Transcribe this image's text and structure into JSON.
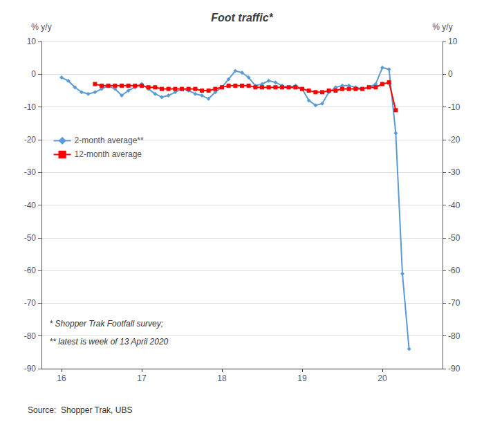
{
  "chart_data": {
    "type": "line",
    "title": "Foot traffic*",
    "ylabel": "% y/y",
    "y2label": "% y/y",
    "annotations": [
      "* Shopper Trak Footfall survey;",
      "** latest is week of 13 April 2020"
    ],
    "source": "Source:  Shopper Trak, UBS",
    "xlim": [
      15.75,
      20.75
    ],
    "xticks": [
      16,
      17,
      18,
      19,
      20
    ],
    "ylim": [
      -90,
      10
    ],
    "yticks": [
      10,
      0,
      -10,
      -20,
      -30,
      -40,
      -50,
      -60,
      -70,
      -80,
      -90
    ],
    "y2lim": [
      -90,
      10
    ],
    "y2ticks": [
      10,
      0,
      -10,
      -20,
      -30,
      -40,
      -50,
      -60,
      -70,
      -80,
      -90
    ],
    "grid": true,
    "legend": "upper left",
    "series": [
      {
        "name": "2-month average**",
        "color": "#5B9BD5",
        "marker": "diamond",
        "x": [
          16.0,
          16.083,
          16.167,
          16.25,
          16.333,
          16.417,
          16.5,
          16.583,
          16.667,
          16.75,
          16.833,
          16.917,
          17.0,
          17.083,
          17.167,
          17.25,
          17.333,
          17.417,
          17.5,
          17.583,
          17.667,
          17.75,
          17.833,
          17.917,
          18.0,
          18.083,
          18.167,
          18.25,
          18.333,
          18.417,
          18.5,
          18.583,
          18.667,
          18.75,
          18.833,
          18.917,
          19.0,
          19.083,
          19.167,
          19.25,
          19.333,
          19.417,
          19.5,
          19.583,
          19.667,
          19.75,
          19.833,
          19.917,
          20.0,
          20.083,
          20.167,
          20.25,
          20.333
        ],
        "values": [
          -1.0,
          -2.0,
          -4.0,
          -5.5,
          -6.0,
          -5.5,
          -4.5,
          -3.5,
          -4.5,
          -6.5,
          -5.0,
          -4.0,
          -3.0,
          -4.5,
          -6.0,
          -7.0,
          -6.5,
          -5.5,
          -4.5,
          -5.0,
          -6.0,
          -6.5,
          -7.5,
          -5.5,
          -4.0,
          -1.5,
          1.0,
          0.5,
          -1.0,
          -3.5,
          -3.0,
          -2.0,
          -2.5,
          -3.5,
          -4.0,
          -3.5,
          -4.5,
          -8.0,
          -9.5,
          -9.0,
          -5.5,
          -4.0,
          -3.5,
          -3.5,
          -4.0,
          -4.5,
          -4.0,
          -3.0,
          2.0,
          1.5,
          -18.0,
          -61.0,
          -84.0
        ]
      },
      {
        "name": "12-month average",
        "color": "#FF0000",
        "marker": "square",
        "x": [
          16.417,
          16.5,
          16.583,
          16.667,
          16.75,
          16.833,
          16.917,
          17.0,
          17.083,
          17.167,
          17.25,
          17.333,
          17.417,
          17.5,
          17.583,
          17.667,
          17.75,
          17.833,
          17.917,
          18.0,
          18.083,
          18.167,
          18.25,
          18.333,
          18.417,
          18.5,
          18.583,
          18.667,
          18.75,
          18.833,
          18.917,
          19.0,
          19.083,
          19.167,
          19.25,
          19.333,
          19.417,
          19.5,
          19.583,
          19.667,
          19.75,
          19.833,
          19.917,
          20.0,
          20.083,
          20.167
        ],
        "values": [
          -3.0,
          -3.5,
          -3.5,
          -3.5,
          -3.5,
          -3.5,
          -3.5,
          -3.5,
          -4.0,
          -4.0,
          -4.5,
          -4.5,
          -4.5,
          -4.5,
          -4.5,
          -4.5,
          -5.0,
          -5.0,
          -4.5,
          -4.0,
          -3.5,
          -3.5,
          -3.5,
          -3.5,
          -4.0,
          -4.0,
          -4.0,
          -4.0,
          -4.0,
          -4.0,
          -4.0,
          -4.5,
          -5.0,
          -5.5,
          -5.5,
          -5.0,
          -5.0,
          -4.5,
          -4.5,
          -4.5,
          -4.5,
          -4.0,
          -4.0,
          -3.0,
          -2.5,
          -11.0
        ]
      }
    ]
  }
}
